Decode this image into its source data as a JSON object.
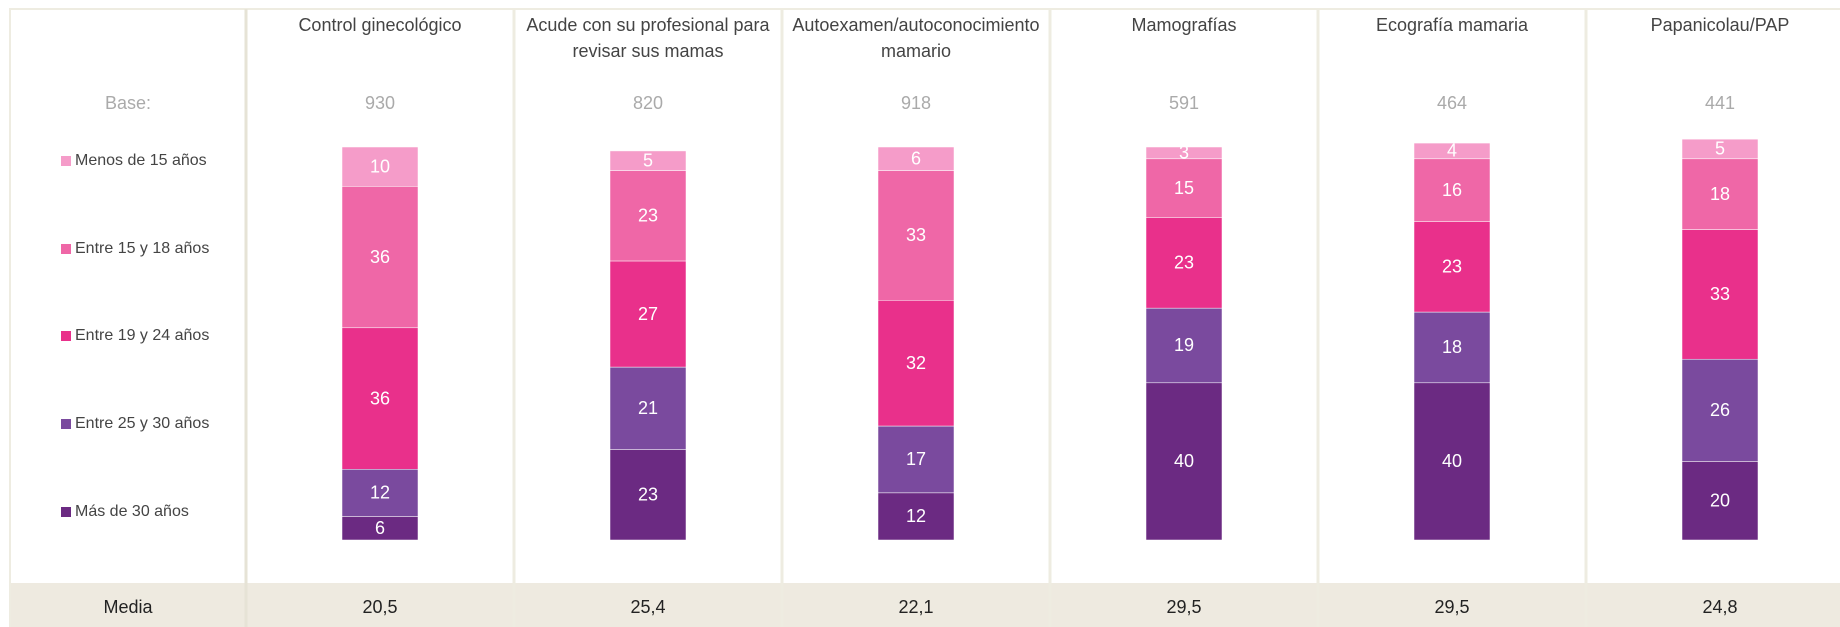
{
  "chart_data": {
    "type": "bar",
    "stacked": true,
    "categories": [
      "Control ginecológico",
      "Acude con su profesional para revisar sus mamas",
      "Autoexamen/autoconocimiento mamario",
      "Mamografías",
      "Ecografía mamaria",
      "Papanicolau/PAP"
    ],
    "base_label": "Base:",
    "base": [
      930,
      820,
      918,
      591,
      464,
      441
    ],
    "series": [
      {
        "name": "Menos de 15 años",
        "color": "#f59cc9",
        "values": [
          10,
          5,
          6,
          3,
          4,
          5
        ]
      },
      {
        "name": "Entre 15 y 18 años",
        "color": "#ef67a7",
        "values": [
          36,
          23,
          33,
          15,
          16,
          18
        ]
      },
      {
        "name": "Entre 19 y 24 años",
        "color": "#e9308b",
        "values": [
          36,
          27,
          32,
          23,
          23,
          33
        ]
      },
      {
        "name": "Entre 25 y 30 años",
        "color": "#7a4a9e",
        "values": [
          12,
          21,
          17,
          19,
          18,
          26
        ]
      },
      {
        "name": "Más de 30 años",
        "color": "#6b2a82",
        "values": [
          6,
          23,
          12,
          40,
          40,
          20
        ]
      }
    ],
    "media_label": "Media",
    "media": [
      "20,5",
      "25,4",
      "22,1",
      "29,5",
      "29,5",
      "24,8"
    ]
  }
}
